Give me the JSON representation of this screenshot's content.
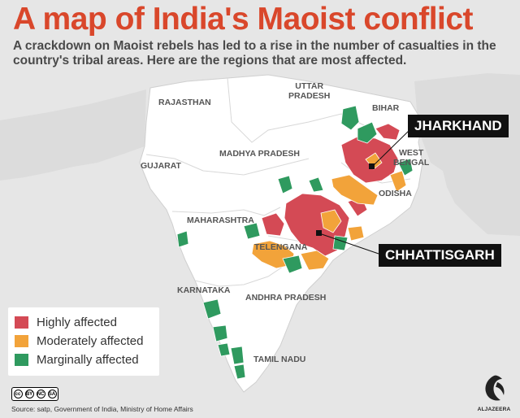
{
  "title": "A map of India's Maoist conflict",
  "subtitle": "A crackdown on Maoist rebels has led to a rise in the number of casualties in the country's tribal areas. Here are the regions that are most affected.",
  "states": {
    "rajasthan": "RAJASTHAN",
    "uttar_pradesh": "UTTAR\nPRADESH",
    "bihar": "BIHAR",
    "madhya_pradesh": "MADHYA PRADESH",
    "gujarat": "GUJARAT",
    "west_bengal": "WEST\nBENGAL",
    "odisha": "ODISHA",
    "maharashtra": "MAHARASHTRA",
    "telengana": "TELENGANA",
    "karnataka": "KARNATAKA",
    "andhra_pradesh": "ANDHRA PRADESH",
    "tamil_nadu": "TAMIL NADU"
  },
  "callouts": {
    "jharkhand": "JHARKHAND",
    "chhattisgarh": "CHHATTISGARH"
  },
  "legend": [
    {
      "label": "Highly affected",
      "color": "#d44a55"
    },
    {
      "label": "Moderately affected",
      "color": "#f2a33a"
    },
    {
      "label": "Marginally affected",
      "color": "#2f9a5f"
    }
  ],
  "colors": {
    "land": "#ffffff",
    "sea": "#e6e6e6",
    "neighbors": "#dcdcdc",
    "title": "#d9472b"
  },
  "license_badge": {
    "cc": "cc",
    "by": "BY",
    "nc": "NC",
    "sa": "SA"
  },
  "source": "Source: satp, Government of India, Ministry of Home Affairs",
  "logo_text": "ALJAZEERA"
}
